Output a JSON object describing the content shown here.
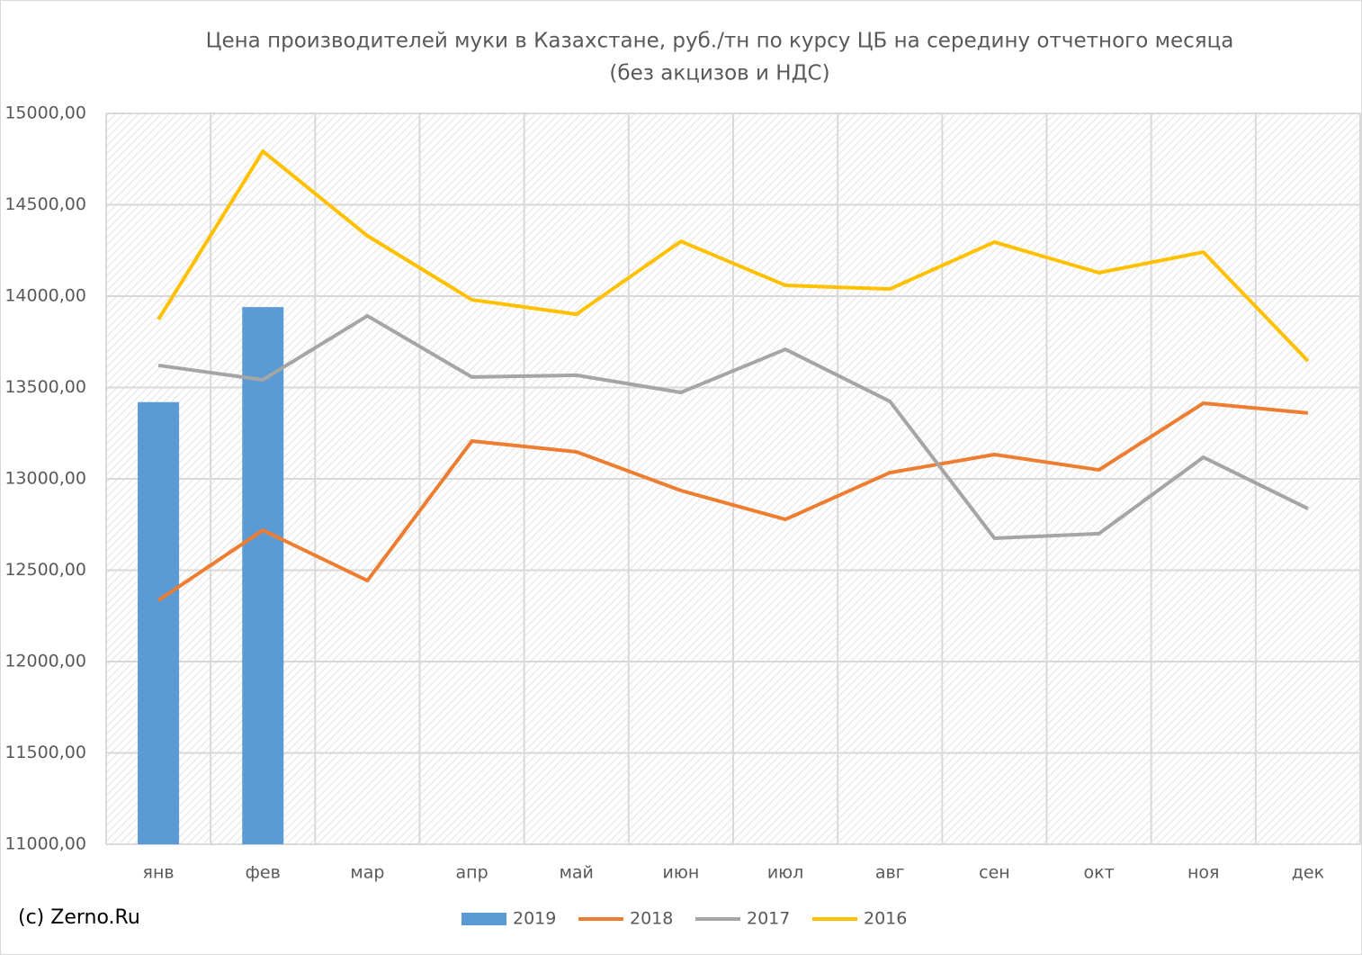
{
  "chart_data": {
    "type": "combo",
    "title": "Цена производителей муки в Казахстане, руб./тн по курсу ЦБ на середину отчетного месяца",
    "subtitle": "(без акцизов и НДС)",
    "annotation": "(c) Zerno.Ru",
    "categories": [
      "янв",
      "фев",
      "мар",
      "апр",
      "май",
      "июн",
      "июл",
      "авг",
      "сен",
      "окт",
      "ноя",
      "дек"
    ],
    "series": [
      {
        "name": "2019",
        "type": "bar",
        "color": "#5b9bd5",
        "values": [
          13420,
          13940,
          null,
          null,
          null,
          null,
          null,
          null,
          null,
          null,
          null,
          null
        ]
      },
      {
        "name": "2018",
        "type": "line",
        "color": "#ed7d31",
        "values": [
          12335,
          12719,
          12443,
          13207,
          13148,
          12936,
          12778,
          13034,
          13133,
          13049,
          13414,
          13360
        ]
      },
      {
        "name": "2017",
        "type": "line",
        "color": "#a5a5a5",
        "values": [
          13621,
          13542,
          13892,
          13557,
          13567,
          13473,
          13709,
          13424,
          12675,
          12700,
          13118,
          12837
        ]
      },
      {
        "name": "2016",
        "type": "line",
        "color": "#ffc000",
        "values": [
          13872,
          14793,
          14330,
          13980,
          13901,
          14300,
          14059,
          14039,
          14296,
          14128,
          14241,
          13645
        ]
      }
    ],
    "ylim": [
      11000,
      15000
    ],
    "yticks": [
      {
        "value": 11000,
        "label": "11000,00"
      },
      {
        "value": 11500,
        "label": "11500,00"
      },
      {
        "value": 12000,
        "label": "12000,00"
      },
      {
        "value": 12500,
        "label": "12500,00"
      },
      {
        "value": 13000,
        "label": "13000,00"
      },
      {
        "value": 13500,
        "label": "13500,00"
      },
      {
        "value": 14000,
        "label": "14000,00"
      },
      {
        "value": 14500,
        "label": "14500,00"
      },
      {
        "value": 15000,
        "label": "15000,00"
      }
    ],
    "grid": true,
    "legend": "bottom"
  }
}
